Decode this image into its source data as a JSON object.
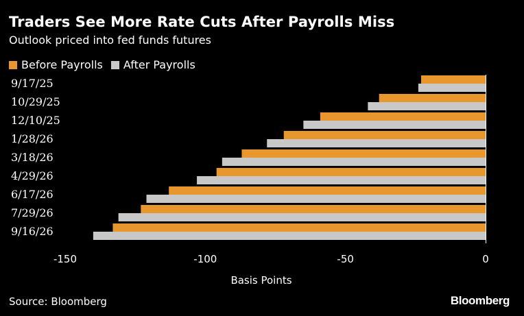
{
  "chart_data": {
    "type": "bar",
    "orientation": "horizontal",
    "title": "Traders See More Rate Cuts After Payrolls Miss",
    "subtitle": "Outlook priced into fed funds futures",
    "xlabel": "Basis Points",
    "ylabel": "",
    "xlim": [
      -150,
      0
    ],
    "xticks": [
      -150,
      -100,
      -50,
      0
    ],
    "grid": false,
    "legend_position": "top-left",
    "categories": [
      "9/17/25",
      "10/29/25",
      "12/10/25",
      "1/28/26",
      "3/18/26",
      "4/29/26",
      "6/17/26",
      "7/29/26",
      "9/16/26"
    ],
    "series": [
      {
        "name": "Before Payrolls",
        "color": "#e8962e",
        "values": [
          -23,
          -38,
          -59,
          -72,
          -87,
          -96,
          -113,
          -123,
          -133
        ]
      },
      {
        "name": "After Payrolls",
        "color": "#c8c8c8",
        "values": [
          -24,
          -42,
          -65,
          -78,
          -94,
          -103,
          -121,
          -131,
          -140
        ]
      }
    ]
  },
  "footer": {
    "source": "Source: Bloomberg",
    "brand": "Bloomberg"
  }
}
